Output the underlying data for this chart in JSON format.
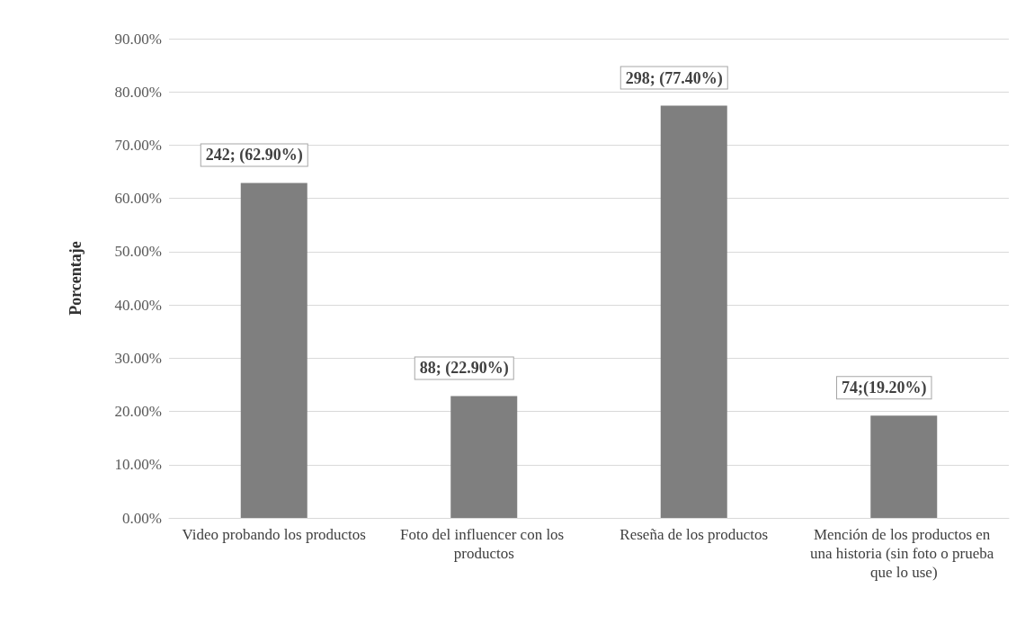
{
  "chart_data": {
    "type": "bar",
    "ylabel": "Porcentaje",
    "categories": [
      "Video probando los productos",
      "Foto del influencer con los productos",
      "Reseña de los productos",
      "Mención de los productos en una historia (sin foto o prueba que lo use)"
    ],
    "values": [
      62.9,
      22.9,
      77.4,
      19.2
    ],
    "value_labels": [
      "242; (62.90%)",
      "88; (22.90%)",
      "298; (77.40%)",
      "74;(19.20%)"
    ],
    "color": "#7f7f7f",
    "ylim": [
      0,
      90
    ],
    "yticks": [
      {
        "value": 0,
        "label": "0.00%"
      },
      {
        "value": 10,
        "label": "10.00%"
      },
      {
        "value": 20,
        "label": "20.00%"
      },
      {
        "value": 30,
        "label": "30.00%"
      },
      {
        "value": 40,
        "label": "40.00%"
      },
      {
        "value": 50,
        "label": "50.00%"
      },
      {
        "value": 60,
        "label": "60.00%"
      },
      {
        "value": 70,
        "label": "70.00%"
      },
      {
        "value": 80,
        "label": "80.00%"
      },
      {
        "value": 90,
        "label": "90.00%"
      }
    ],
    "grid": "y"
  }
}
